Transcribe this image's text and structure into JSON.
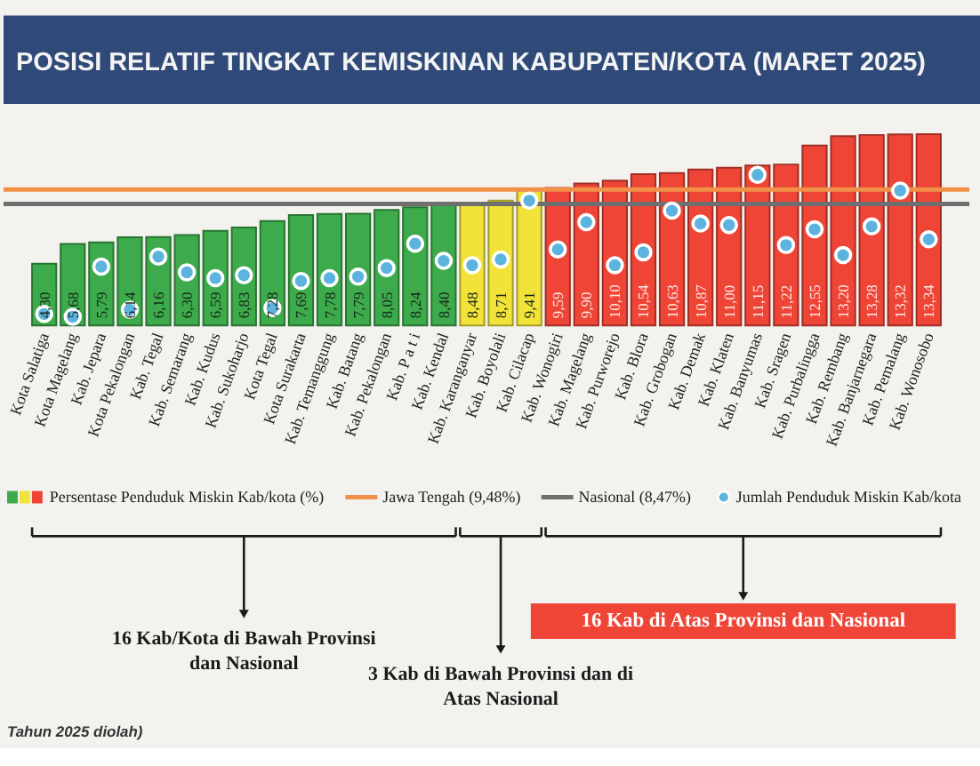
{
  "chart_data": {
    "type": "bar",
    "title": "POSISI RELATIF TINGKAT KEMISKINAN KABUPATEN/KOTA (MARET 2025)",
    "categories": [
      "Kota Salatiga",
      "Kota Magelang",
      "Kab. Jepara",
      "Kota Pekalongan",
      "Kab. Tegal",
      "Kab. Semarang",
      "Kab. Kudus",
      "Kab. Sukoharjo",
      "Kota Tegal",
      "Kota Surakarta",
      "Kab. Temanggung",
      "Kab. Batang",
      "Kab. Pekalongan",
      "Kab. P a t i",
      "Kab. Kendal",
      "Kab. Karanganyar",
      "Kab. Boyolali",
      "Kab. Cilacap",
      "Kab. Wonogiri",
      "Kab. Magelang",
      "Kab. Purworejo",
      "Kab. Blora",
      "Kab. Grobogan",
      "Kab. Demak",
      "Kab. Klaten",
      "Kab. Banyumas",
      "Kab. Sragen",
      "Kab. Purbalingga",
      "Kab. Rembang",
      "Kab. Banjarnegara",
      "Kab. Pemalang",
      "Kab. Wonosobo"
    ],
    "series": [
      {
        "name": "Persentase Penduduk Miskin Kab/kota (%)",
        "colors": [
          "#3dab4b",
          "#3dab4b",
          "#3dab4b",
          "#3dab4b",
          "#3dab4b",
          "#3dab4b",
          "#3dab4b",
          "#3dab4b",
          "#3dab4b",
          "#3dab4b",
          "#3dab4b",
          "#3dab4b",
          "#3dab4b",
          "#3dab4b",
          "#3dab4b",
          "#f2e33a",
          "#f2e33a",
          "#f2e33a",
          "#ee4537",
          "#ee4537",
          "#ee4537",
          "#ee4537",
          "#ee4537",
          "#ee4537",
          "#ee4537",
          "#ee4537",
          "#ee4537",
          "#ee4537",
          "#ee4537",
          "#ee4537",
          "#ee4537",
          "#ee4537"
        ],
        "values": [
          4.3,
          5.68,
          5.79,
          6.14,
          6.16,
          6.3,
          6.59,
          6.83,
          7.28,
          7.69,
          7.78,
          7.79,
          8.05,
          8.24,
          8.4,
          8.48,
          8.71,
          9.41,
          9.59,
          9.9,
          10.1,
          10.54,
          10.63,
          10.87,
          11.0,
          11.15,
          11.22,
          12.55,
          13.2,
          13.28,
          13.32,
          13.34
        ],
        "value_labels": [
          "4,30",
          "5,68",
          "5,79",
          "6,14",
          "6,16",
          "6,30",
          "6,59",
          "6,83",
          "7,28",
          "7,69",
          "7,78",
          "7,79",
          "8,05",
          "8,24",
          "8,40",
          "8,48",
          "8,71",
          "9,41",
          "9,59",
          "9,90",
          "10,10",
          "10,54",
          "10,63",
          "10,87",
          "11,00",
          "11,15",
          "11,22",
          "12,55",
          "13,20",
          "13,28",
          "13,32",
          "13,34"
        ]
      },
      {
        "name": "Jumlah Penduduk Miskin Kab/kota",
        "type": "scatter",
        "color": "#5cb3dd",
        "marker": "circle",
        "values": [
          0.8,
          0.6,
          4.1,
          1.1,
          4.8,
          3.7,
          3.3,
          3.5,
          1.2,
          3.1,
          3.3,
          3.4,
          4.0,
          5.7,
          4.5,
          4.2,
          4.6,
          8.7,
          5.3,
          7.2,
          4.2,
          5.1,
          8.0,
          7.1,
          7.0,
          10.5,
          5.6,
          6.7,
          4.9,
          6.9,
          9.4,
          6.0
        ]
      }
    ],
    "ref_lines": [
      {
        "axis": "y",
        "value": 9.48,
        "label": "Jawa Tengah (9,48%)",
        "color": "#f2904a"
      },
      {
        "axis": "y",
        "value": 8.47,
        "label": "Nasional (8,47%)",
        "color": "#6f6f6f"
      }
    ],
    "annotations": [
      "16 Kab/Kota di Bawah Provinsi dan Nasional",
      "3 Kab di Bawah Provinsi dan di Atas Nasional",
      "16 Kab di Atas Provinsi dan Nasional",
      "Tahun 2025 diolah)"
    ],
    "legend": "bottom",
    "tick_labels": "x"
  }
}
